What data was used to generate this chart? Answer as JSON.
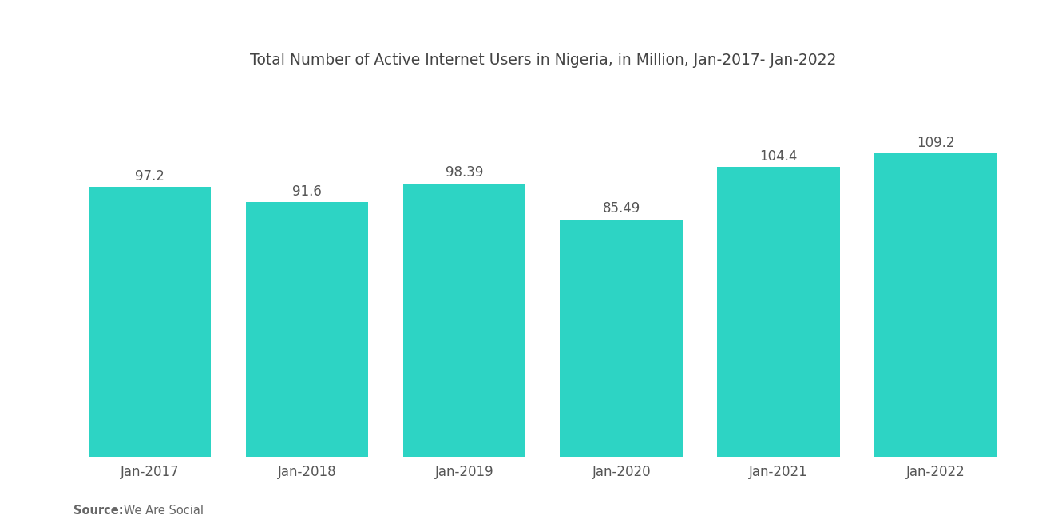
{
  "title": "Total Number of Active Internet Users in Nigeria, in Million, Jan-2017- Jan-2022",
  "categories": [
    "Jan-2017",
    "Jan-2018",
    "Jan-2019",
    "Jan-2020",
    "Jan-2021",
    "Jan-2022"
  ],
  "values": [
    97.2,
    91.6,
    98.39,
    85.49,
    104.4,
    109.2
  ],
  "bar_color": "#2DD4C4",
  "background_color": "#ffffff",
  "title_fontsize": 13.5,
  "value_fontsize": 12,
  "tick_fontsize": 12,
  "source_bold": "Source:",
  "source_normal": "   We Are Social",
  "ylim": [
    0,
    130
  ],
  "bar_width": 0.78
}
